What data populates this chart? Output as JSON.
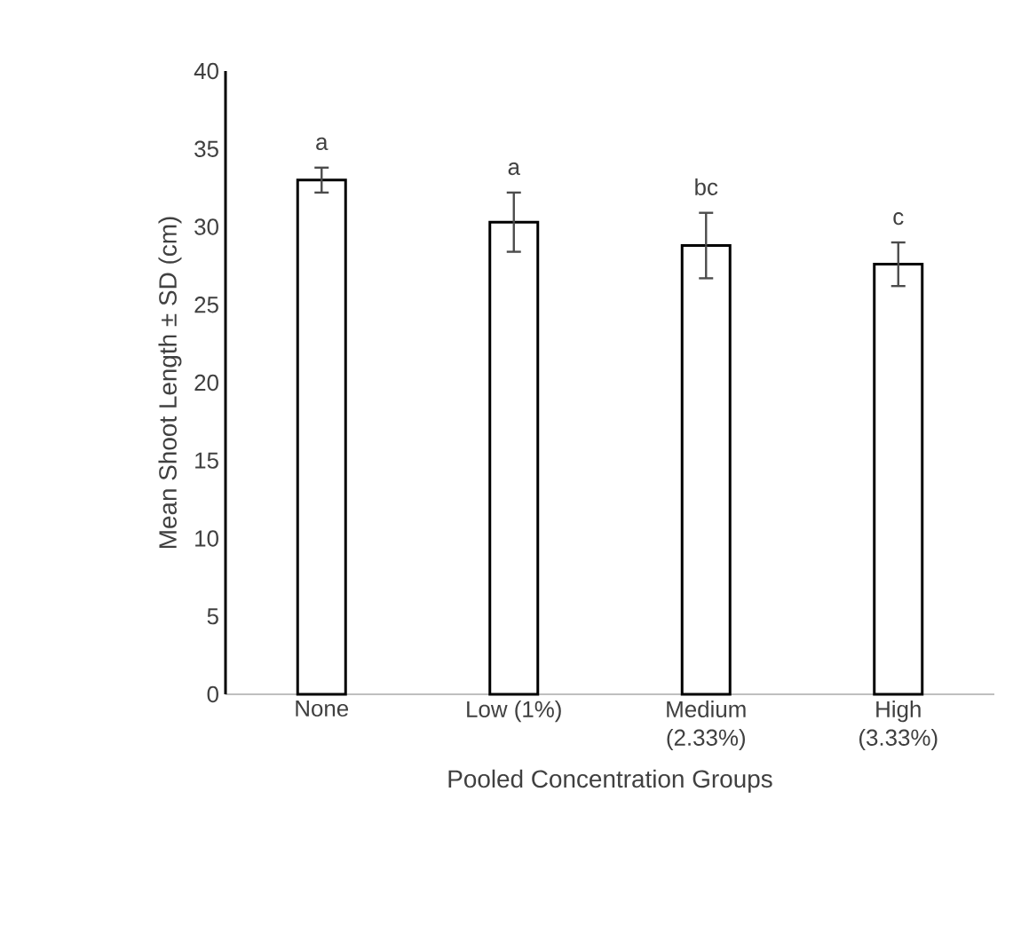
{
  "chart_data": {
    "type": "bar",
    "xlabel": "Pooled Concentration Groups",
    "ylabel": "Mean Shoot Length  ± SD (cm)",
    "categories": [
      "None",
      "Low (1%)",
      "Medium\n(2.33%)",
      "High\n(3.33%)"
    ],
    "values": [
      33.0,
      30.3,
      28.8,
      27.6
    ],
    "errors": [
      0.8,
      1.9,
      2.1,
      1.4
    ],
    "color": "#ffffff",
    "ylim": [
      0,
      40
    ],
    "yticks": [
      0,
      5,
      10,
      15,
      20,
      25,
      30,
      35,
      40
    ],
    "grid": false,
    "annotations": [
      "a",
      "a",
      "bc",
      "c"
    ]
  }
}
